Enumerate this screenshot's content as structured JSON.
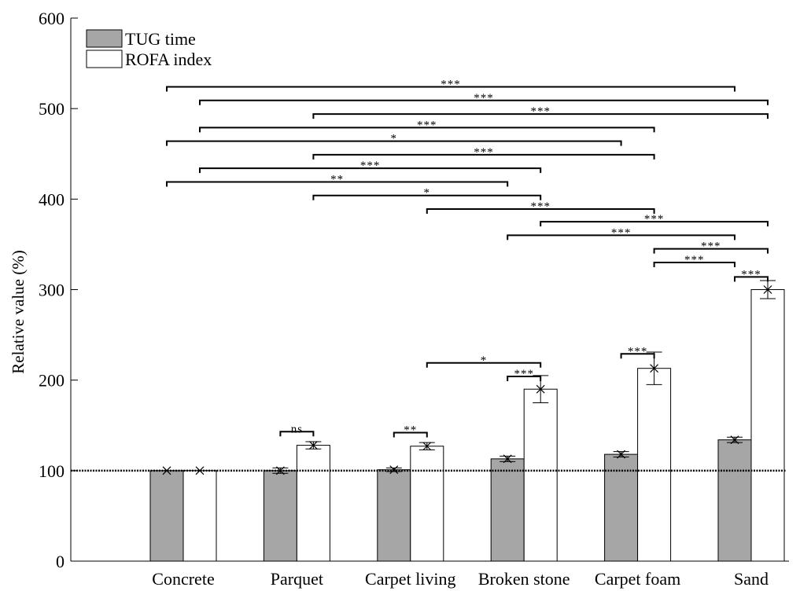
{
  "chart_data": {
    "type": "bar",
    "title": "",
    "xlabel": "",
    "ylabel": "Relative value (%)",
    "ylim": [
      0,
      600
    ],
    "yticks": [
      0,
      100,
      200,
      300,
      400,
      500,
      600
    ],
    "reference_line": 100,
    "categories": [
      "Concrete",
      "Parquet",
      "Carpet living",
      "Broken stone",
      "Carpet foam",
      "Sand"
    ],
    "series": [
      {
        "name": "TUG time",
        "color": "#a6a6a6",
        "values": [
          100,
          100,
          101,
          113,
          118,
          134
        ],
        "errors": [
          1,
          3,
          2,
          3,
          3,
          3
        ]
      },
      {
        "name": "ROFA index",
        "color": "#ffffff",
        "values": [
          100,
          128,
          127,
          190,
          213,
          300
        ],
        "errors": [
          1,
          4,
          4,
          15,
          18,
          10
        ]
      }
    ],
    "legend_position": "top-left",
    "grid": false,
    "significance": [
      {
        "label": "ns",
        "from": [
          1,
          0
        ],
        "to": [
          1,
          1
        ],
        "y": 143
      },
      {
        "label": "**",
        "from": [
          2,
          0
        ],
        "to": [
          2,
          1
        ],
        "y": 142
      },
      {
        "label": "***",
        "from": [
          3,
          0
        ],
        "to": [
          3,
          1
        ],
        "y": 204
      },
      {
        "label": "*",
        "from": [
          2,
          1
        ],
        "to": [
          3,
          1
        ],
        "y": 219
      },
      {
        "label": "***",
        "from": [
          4,
          0
        ],
        "to": [
          4,
          1
        ],
        "y": 229
      },
      {
        "label": "***",
        "from": [
          5,
          0
        ],
        "to": [
          5,
          1
        ],
        "y": 314
      },
      {
        "label": "***",
        "from": [
          4,
          1
        ],
        "to": [
          5,
          0
        ],
        "y": 330
      },
      {
        "label": "***",
        "from": [
          4,
          1
        ],
        "to": [
          5,
          1
        ],
        "y": 345
      },
      {
        "label": "***",
        "from": [
          3,
          0
        ],
        "to": [
          5,
          0
        ],
        "y": 360
      },
      {
        "label": "***",
        "from": [
          3,
          1
        ],
        "to": [
          5,
          1
        ],
        "y": 375
      },
      {
        "label": "***",
        "from": [
          2,
          1
        ],
        "to": [
          4,
          1
        ],
        "y": 389
      },
      {
        "label": "*",
        "from": [
          1,
          1
        ],
        "to": [
          3,
          1
        ],
        "y": 404
      },
      {
        "label": "**",
        "from": [
          0,
          0
        ],
        "to": [
          3,
          0
        ],
        "y": 419
      },
      {
        "label": "***",
        "from": [
          0,
          1
        ],
        "to": [
          3,
          1
        ],
        "y": 434
      },
      {
        "label": "***",
        "from": [
          1,
          1
        ],
        "to": [
          4,
          1
        ],
        "y": 449
      },
      {
        "label": "*",
        "from": [
          0,
          0
        ],
        "to": [
          4,
          0
        ],
        "y": 464
      },
      {
        "label": "***",
        "from": [
          0,
          1
        ],
        "to": [
          4,
          1
        ],
        "y": 479
      },
      {
        "label": "***",
        "from": [
          1,
          1
        ],
        "to": [
          5,
          1
        ],
        "y": 494
      },
      {
        "label": "***",
        "from": [
          0,
          1
        ],
        "to": [
          5,
          1
        ],
        "y": 509
      },
      {
        "label": "***",
        "from": [
          0,
          0
        ],
        "to": [
          5,
          0
        ],
        "y": 524
      }
    ]
  }
}
